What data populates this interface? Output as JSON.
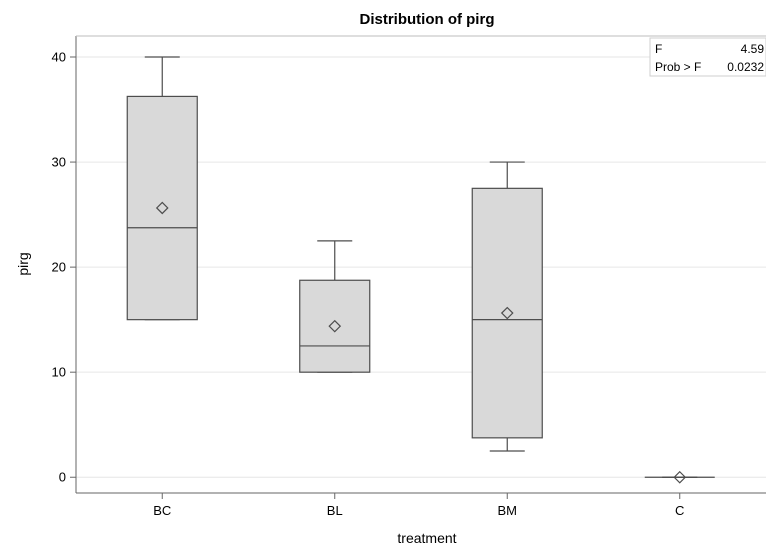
{
  "chart_data": {
    "type": "box",
    "title": "Distribution of pirg",
    "xlabel": "treatment",
    "ylabel": "pirg",
    "ylim": [
      -1.5,
      42
    ],
    "yticks": [
      0,
      10,
      20,
      30,
      40
    ],
    "grid": true,
    "categories": [
      "BC",
      "BL",
      "BM",
      "C"
    ],
    "boxes": [
      {
        "category": "BC",
        "min": 15,
        "q1": 15,
        "median": 23.75,
        "q3": 36.25,
        "max": 40,
        "mean": 25.63
      },
      {
        "category": "BL",
        "min": 10,
        "q1": 10,
        "median": 12.5,
        "q3": 18.75,
        "max": 22.5,
        "mean": 14.38
      },
      {
        "category": "BM",
        "min": 2.5,
        "q1": 3.75,
        "median": 15,
        "q3": 27.5,
        "max": 30,
        "mean": 15.63
      },
      {
        "category": "C",
        "min": 0,
        "q1": 0,
        "median": 0,
        "q3": 0,
        "max": 0,
        "mean": 0
      }
    ],
    "colors": {
      "box_fill": "#d9d9d9",
      "box_stroke": "#4d4d4d",
      "grid": "#e6e6e6",
      "axis": "#666666"
    },
    "stats": [
      {
        "label": "F",
        "value": "4.59"
      },
      {
        "label": "Prob > F",
        "value": "0.0232"
      }
    ]
  }
}
